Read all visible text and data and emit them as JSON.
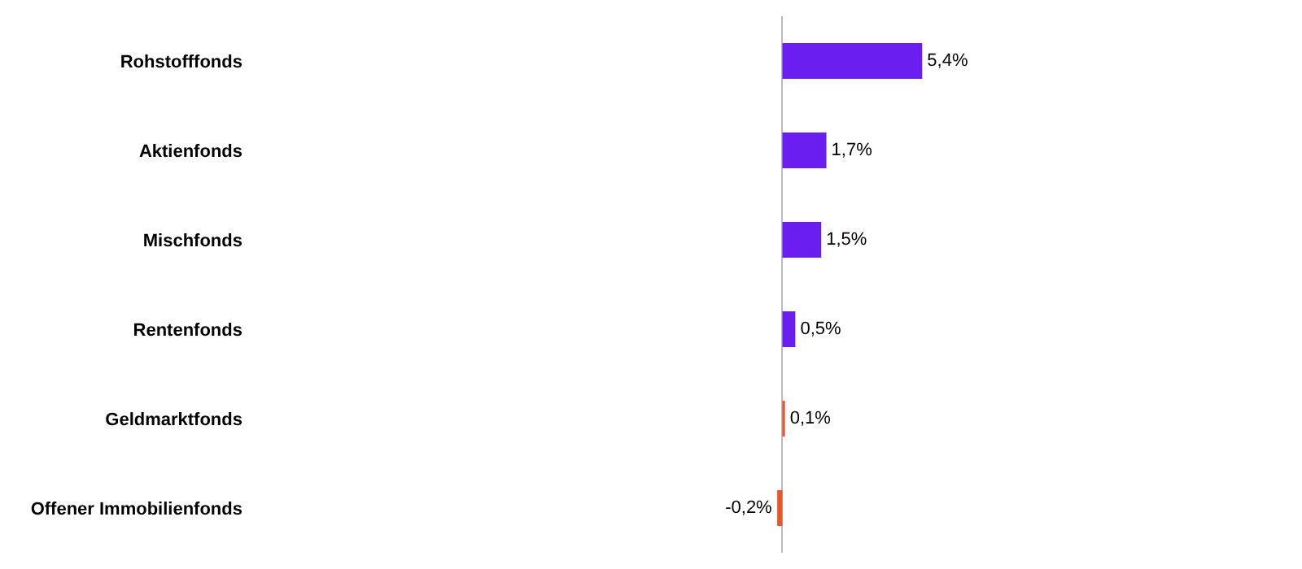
{
  "chart_data": {
    "type": "bar",
    "orientation": "horizontal",
    "categories": [
      "Rohstofffonds",
      "Aktienfonds",
      "Mischfonds",
      "Rentenfonds",
      "Geldmarktfonds",
      "Offener Immobilienfonds"
    ],
    "values": [
      5.4,
      1.7,
      1.5,
      0.5,
      0.1,
      -0.2
    ],
    "colors": [
      "#6a1ff0",
      "#6a1ff0",
      "#6a1ff0",
      "#6a1ff0",
      "#e8572a",
      "#e8572a"
    ],
    "value_labels": [
      "5,4%",
      "1,7%",
      "1,5%",
      "0,5%",
      "0,1%",
      "-0,2%"
    ],
    "grid": false,
    "legend": false
  }
}
